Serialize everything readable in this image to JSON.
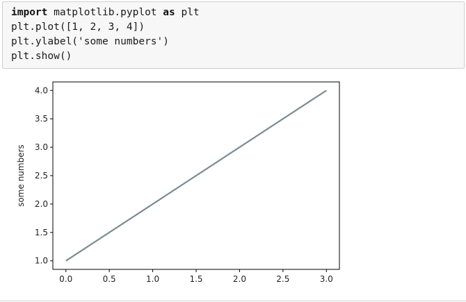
{
  "code_cell": {
    "lines": [
      {
        "parts": [
          {
            "text": "import",
            "kind": "keyword"
          },
          {
            "text": " matplotlib.pyplot ",
            "kind": "plain"
          },
          {
            "text": "as",
            "kind": "keyword"
          },
          {
            "text": " plt",
            "kind": "plain"
          }
        ]
      },
      {
        "parts": [
          {
            "text": "plt.plot([1, 2, 3, 4])",
            "kind": "plain"
          }
        ]
      },
      {
        "parts": [
          {
            "text": "plt.ylabel(",
            "kind": "plain"
          },
          {
            "text": "'some numbers'",
            "kind": "string"
          },
          {
            "text": ")",
            "kind": "plain"
          }
        ]
      },
      {
        "parts": [
          {
            "text": "plt.show()",
            "kind": "plain"
          }
        ]
      }
    ]
  },
  "colors": {
    "line": "#7a8c91",
    "axes": "#000000",
    "tick_text": "#222222"
  },
  "chart_data": {
    "type": "line",
    "x": [
      0,
      1,
      2,
      3
    ],
    "series": [
      {
        "values": [
          1,
          2,
          3,
          4
        ]
      }
    ],
    "xticks": [
      "0.0",
      "0.5",
      "1.0",
      "1.5",
      "2.0",
      "2.5",
      "3.0"
    ],
    "yticks": [
      "1.0",
      "1.5",
      "2.0",
      "2.5",
      "3.0",
      "3.5",
      "4.0"
    ],
    "xtick_values": [
      0,
      0.5,
      1,
      1.5,
      2,
      2.5,
      3
    ],
    "ytick_values": [
      1,
      1.5,
      2,
      2.5,
      3,
      3.5,
      4
    ],
    "xlim": [
      -0.15,
      3.15
    ],
    "ylim": [
      0.85,
      4.15
    ],
    "ylabel": "some numbers",
    "xlabel": "",
    "title": "",
    "grid": false
  }
}
